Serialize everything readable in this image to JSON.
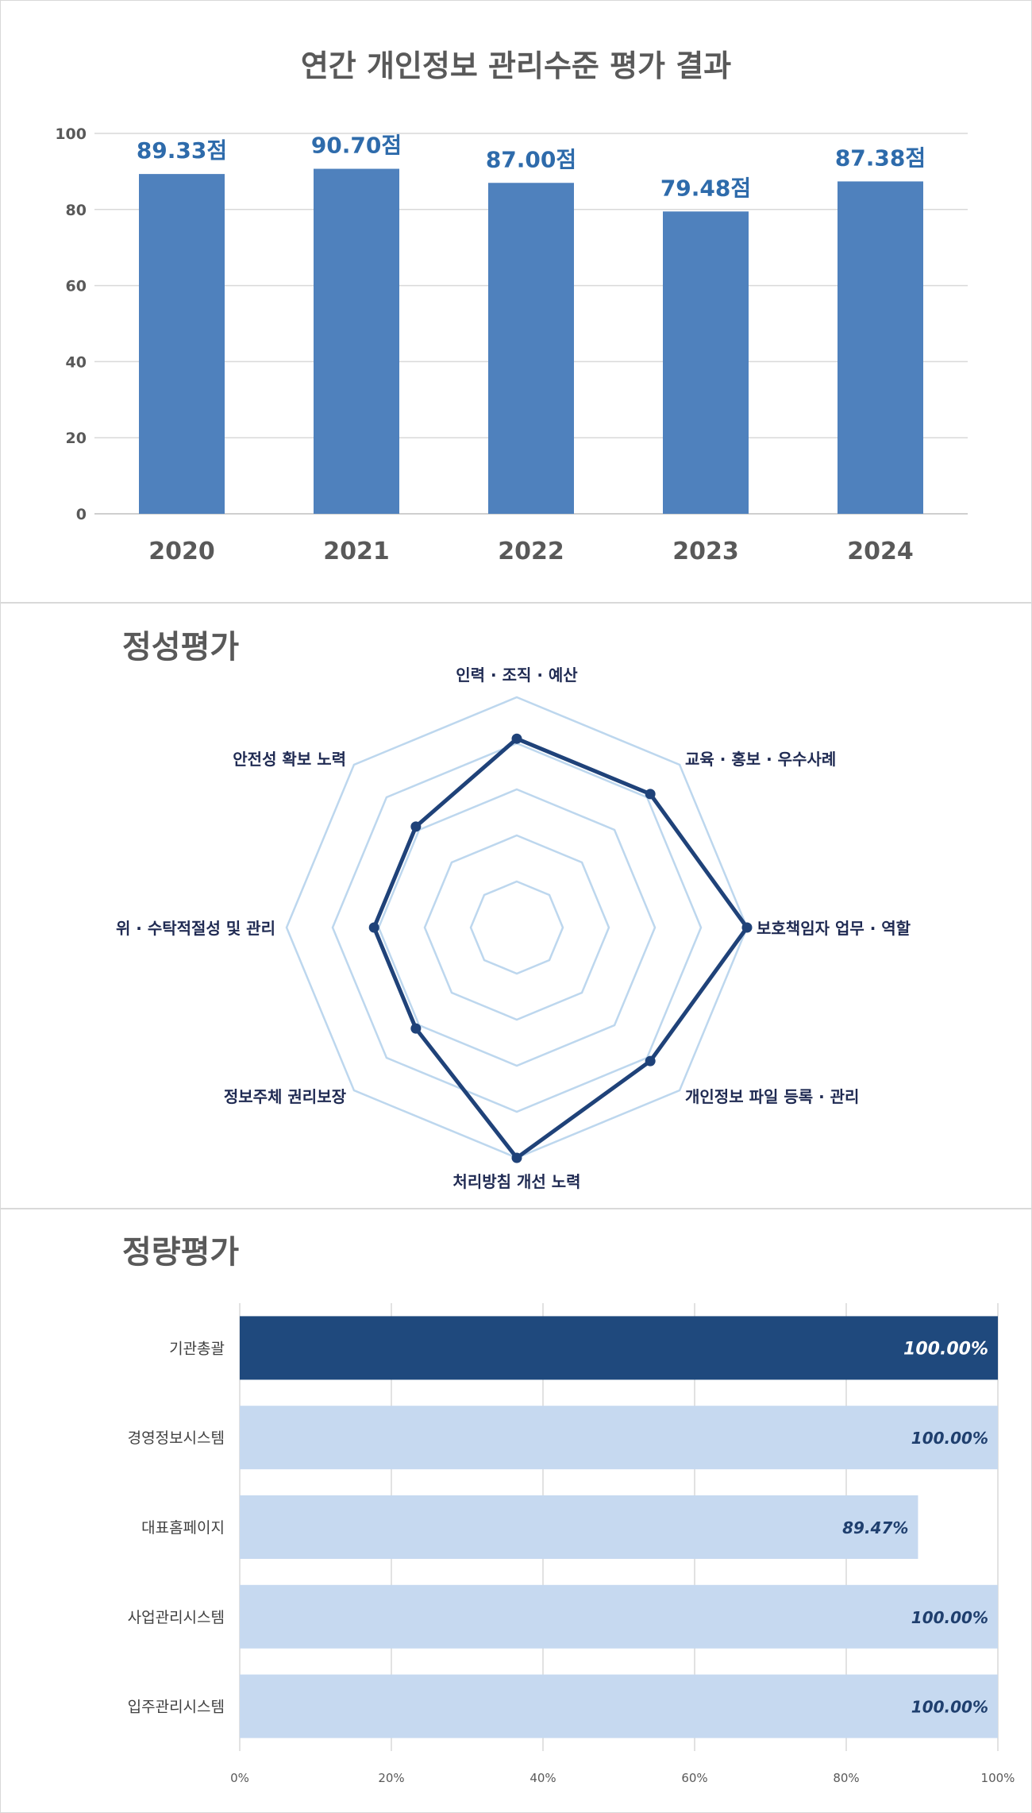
{
  "chart_data": [
    {
      "type": "bar",
      "title": "연간 개인정보 관리수준 평가 결과",
      "categories": [
        "2020",
        "2021",
        "2022",
        "2023",
        "2024"
      ],
      "values": [
        89.33,
        90.7,
        87.0,
        79.48,
        87.38
      ],
      "data_labels": [
        "89.33점",
        "90.70점",
        "87.00점",
        "79.48점",
        "87.38점"
      ],
      "ylim": [
        0,
        100
      ],
      "yticks": [
        0,
        20,
        40,
        60,
        80,
        100
      ],
      "grid": true,
      "colors": {
        "bar": "#4f81bd",
        "label": "#2e6bab"
      }
    },
    {
      "type": "radar",
      "title": "정성평가",
      "categories": [
        "인력 · 조직 · 예산",
        "교육 · 홍보 · 우수사례",
        "보호책임자 업무 · 역할",
        "개인정보 파일 등록 · 관리",
        "처리방침 개선 노력",
        "정보주체 권리보장",
        "위 · 수탁적절성 및 관리",
        "안전성 확보 노력"
      ],
      "values": [
        0.82,
        0.82,
        1.0,
        0.82,
        1.0,
        0.62,
        0.62,
        0.62
      ],
      "rings": 5,
      "colors": {
        "line": "#1f4279",
        "grid": "#bdd7ee"
      }
    },
    {
      "type": "bar",
      "orientation": "horizontal",
      "title": "정량평가",
      "categories": [
        "기관총괄",
        "경영정보시스템",
        "대표홈페이지",
        "사업관리시스템",
        "입주관리시스템"
      ],
      "values": [
        100.0,
        100.0,
        89.47,
        100.0,
        100.0
      ],
      "data_labels": [
        "100.00%",
        "100.00%",
        "89.47%",
        "100.00%",
        "100.00%"
      ],
      "xticks": [
        "0%",
        "20%",
        "40%",
        "60%",
        "80%",
        "100%"
      ],
      "xlim": [
        0,
        100
      ],
      "colors": {
        "highlight": "#1f497d",
        "bar": "#c6d9f0",
        "highlight_label": "#ffffff",
        "label": "#1f3f6e"
      }
    }
  ]
}
